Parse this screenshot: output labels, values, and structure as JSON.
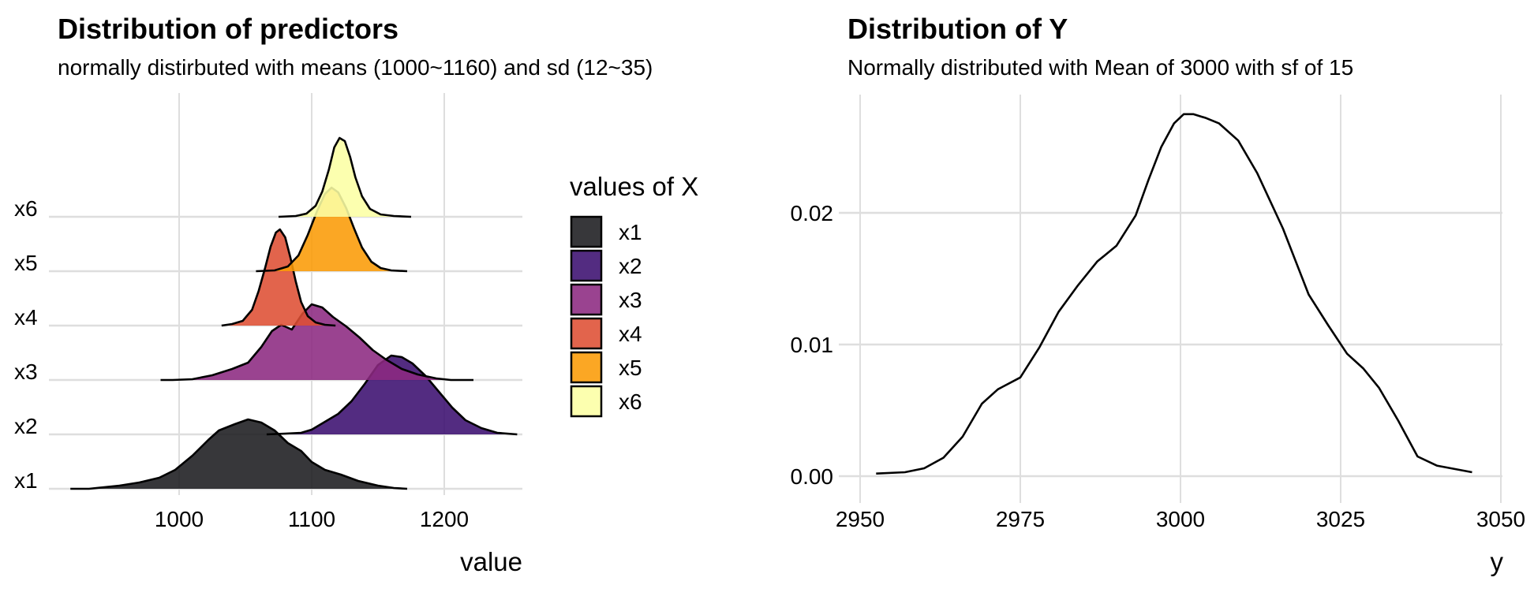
{
  "chart_data": [
    {
      "type": "ridgeline",
      "title": "Distribution of predictors",
      "subtitle": "normally distirbuted with means (1000~1160) and sd (12~35)",
      "xlabel": "value",
      "ylabel": "",
      "xlim": [
        912,
        1260
      ],
      "x_ticks": [
        "1000",
        "1100",
        "1200"
      ],
      "x_tick_values": [
        1000,
        1100,
        1200
      ],
      "grid": true,
      "legend": {
        "title": "values of X",
        "placement": "right"
      },
      "series": [
        {
          "name": "x1",
          "color": "#1b1b1f",
          "curve": [
            [
              918,
              0
            ],
            [
              932,
              0
            ],
            [
              955,
              0.04
            ],
            [
              970,
              0.08
            ],
            [
              985,
              0.14
            ],
            [
              997,
              0.24
            ],
            [
              1010,
              0.42
            ],
            [
              1022,
              0.62
            ],
            [
              1030,
              0.74
            ],
            [
              1042,
              0.82
            ],
            [
              1052,
              0.88
            ],
            [
              1062,
              0.84
            ],
            [
              1072,
              0.74
            ],
            [
              1082,
              0.58
            ],
            [
              1092,
              0.48
            ],
            [
              1100,
              0.34
            ],
            [
              1110,
              0.24
            ],
            [
              1122,
              0.18
            ],
            [
              1135,
              0.1
            ],
            [
              1150,
              0.04
            ],
            [
              1162,
              0.01
            ],
            [
              1172,
              0
            ]
          ]
        },
        {
          "name": "x2",
          "color": "#3b0f70",
          "curve": [
            [
              1066,
              0
            ],
            [
              1080,
              0.01
            ],
            [
              1092,
              0.02
            ],
            [
              1100,
              0.06
            ],
            [
              1110,
              0.16
            ],
            [
              1120,
              0.26
            ],
            [
              1130,
              0.42
            ],
            [
              1140,
              0.64
            ],
            [
              1150,
              0.88
            ],
            [
              1160,
              1.0
            ],
            [
              1168,
              0.98
            ],
            [
              1176,
              0.9
            ],
            [
              1186,
              0.74
            ],
            [
              1196,
              0.54
            ],
            [
              1206,
              0.34
            ],
            [
              1216,
              0.18
            ],
            [
              1228,
              0.08
            ],
            [
              1240,
              0.02
            ],
            [
              1255,
              0
            ]
          ]
        },
        {
          "name": "x3",
          "color": "#8c2981",
          "curve": [
            [
              986,
              0
            ],
            [
              995,
              0
            ],
            [
              1010,
              0.01
            ],
            [
              1025,
              0.06
            ],
            [
              1040,
              0.14
            ],
            [
              1052,
              0.22
            ],
            [
              1062,
              0.42
            ],
            [
              1070,
              0.62
            ],
            [
              1077,
              0.7
            ],
            [
              1085,
              0.64
            ],
            [
              1093,
              0.84
            ],
            [
              1100,
              0.96
            ],
            [
              1108,
              0.92
            ],
            [
              1116,
              0.8
            ],
            [
              1126,
              0.68
            ],
            [
              1136,
              0.54
            ],
            [
              1146,
              0.38
            ],
            [
              1156,
              0.26
            ],
            [
              1168,
              0.14
            ],
            [
              1180,
              0.07
            ],
            [
              1194,
              0.02
            ],
            [
              1205,
              0
            ],
            [
              1222,
              0
            ]
          ]
        },
        {
          "name": "x4",
          "color": "#de4f33",
          "curve": [
            [
              1032,
              0
            ],
            [
              1040,
              0.02
            ],
            [
              1048,
              0.06
            ],
            [
              1055,
              0.2
            ],
            [
              1060,
              0.44
            ],
            [
              1065,
              0.74
            ],
            [
              1069,
              1.0
            ],
            [
              1073,
              1.18
            ],
            [
              1076,
              1.22
            ],
            [
              1080,
              1.12
            ],
            [
              1084,
              0.86
            ],
            [
              1088,
              0.56
            ],
            [
              1092,
              0.3
            ],
            [
              1097,
              0.12
            ],
            [
              1103,
              0.04
            ],
            [
              1110,
              0.01
            ],
            [
              1118,
              0
            ]
          ]
        },
        {
          "name": "x5",
          "color": "#fb9b06",
          "curve": [
            [
              1058,
              0
            ],
            [
              1072,
              0.01
            ],
            [
              1082,
              0.06
            ],
            [
              1090,
              0.2
            ],
            [
              1097,
              0.46
            ],
            [
              1104,
              0.76
            ],
            [
              1110,
              0.98
            ],
            [
              1115,
              1.06
            ],
            [
              1120,
              1.0
            ],
            [
              1126,
              0.8
            ],
            [
              1132,
              0.54
            ],
            [
              1138,
              0.3
            ],
            [
              1145,
              0.12
            ],
            [
              1152,
              0.04
            ],
            [
              1160,
              0.01
            ],
            [
              1172,
              0
            ]
          ]
        },
        {
          "name": "x6",
          "color": "#fcffa4",
          "curve": [
            [
              1075,
              0
            ],
            [
              1088,
              0.01
            ],
            [
              1096,
              0.04
            ],
            [
              1103,
              0.14
            ],
            [
              1108,
              0.32
            ],
            [
              1113,
              0.6
            ],
            [
              1117,
              0.88
            ],
            [
              1121,
              1.0
            ],
            [
              1125,
              0.96
            ],
            [
              1129,
              0.76
            ],
            [
              1133,
              0.5
            ],
            [
              1138,
              0.26
            ],
            [
              1144,
              0.1
            ],
            [
              1152,
              0.03
            ],
            [
              1162,
              0.01
            ],
            [
              1175,
              0
            ]
          ]
        }
      ]
    },
    {
      "type": "line",
      "title": "Distribution of Y",
      "subtitle": "Normally distributed with Mean of 3000 with sf of 15",
      "xlabel": "y",
      "ylabel": "",
      "xlim": [
        2950,
        3050
      ],
      "ylim": [
        0,
        0.0275
      ],
      "x_ticks": [
        "2950",
        "2975",
        "3000",
        "3025",
        "3050"
      ],
      "x_tick_values": [
        2950,
        2975,
        3000,
        3025,
        3050
      ],
      "y_ticks": [
        "0.00",
        "0.01",
        "0.02"
      ],
      "y_tick_values": [
        0,
        0.01,
        0.02
      ],
      "grid": true,
      "series": [
        {
          "x": [
            2952.5,
            2957,
            2960,
            2963,
            2966,
            2969,
            2971.5,
            2975,
            2978,
            2981,
            2984,
            2987,
            2990,
            2993,
            2995,
            2997,
            2999,
            3000.5,
            3002,
            3004,
            3006,
            3009,
            3012,
            3016,
            3020,
            3023,
            3026,
            3028.5,
            3031,
            3034,
            3037,
            3040,
            3045.5
          ],
          "y": [
            0.0002,
            0.0003,
            0.0006,
            0.0014,
            0.003,
            0.0055,
            0.0066,
            0.0075,
            0.0098,
            0.0125,
            0.0145,
            0.0163,
            0.0175,
            0.0198,
            0.0225,
            0.025,
            0.0268,
            0.0275,
            0.0275,
            0.0272,
            0.0268,
            0.0255,
            0.023,
            0.0188,
            0.0138,
            0.0115,
            0.0093,
            0.0082,
            0.0067,
            0.0042,
            0.0015,
            0.0008,
            0.0003
          ]
        }
      ]
    }
  ]
}
